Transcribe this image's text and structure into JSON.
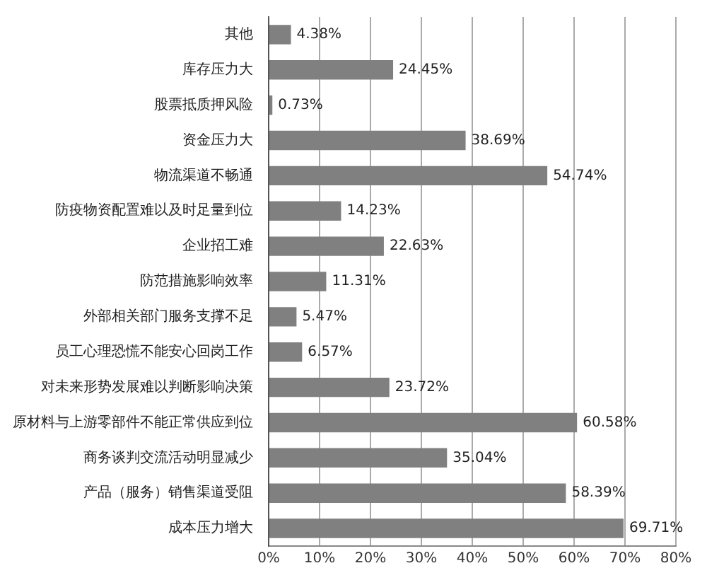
{
  "chart_data": {
    "type": "bar",
    "orientation": "horizontal",
    "categories": [
      "其他",
      "库存压力大",
      "股票抵质押风险",
      "资金压力大",
      "物流渠道不畅通",
      "防疫物资配置难以及时足量到位",
      "企业招工难",
      "防范措施影响效率",
      "外部相关部门服务支撑不足",
      "员工心理恐慌不能安心回岗工作",
      "对未来形势发展难以判断影响决策",
      "原材料与上游零部件不能正常供应到位",
      "商务谈判交流活动明显减少",
      "产品（服务）销售渠道受阻",
      "成本压力增大"
    ],
    "values": [
      4.38,
      24.45,
      0.73,
      38.69,
      54.74,
      14.23,
      22.63,
      11.31,
      5.47,
      6.57,
      23.72,
      60.58,
      35.04,
      58.39,
      69.71
    ],
    "value_labels": [
      "4.38%",
      "24.45%",
      "0.73%",
      "38.69%",
      "54.74%",
      "14.23%",
      "22.63%",
      "11.31%",
      "5.47%",
      "6.57%",
      "23.72%",
      "60.58%",
      "35.04%",
      "58.39%",
      "69.71%"
    ],
    "color": "#808080",
    "xlim": [
      0,
      80
    ],
    "xticks": [
      {
        "value": 0,
        "label": "0%"
      },
      {
        "value": 10,
        "label": "10%"
      },
      {
        "value": 20,
        "label": "20%"
      },
      {
        "value": 30,
        "label": "30%"
      },
      {
        "value": 40,
        "label": "40%"
      },
      {
        "value": 50,
        "label": "50%"
      },
      {
        "value": 60,
        "label": "60%"
      },
      {
        "value": 70,
        "label": "70%"
      },
      {
        "value": 80,
        "label": "80%"
      }
    ],
    "grid": "x",
    "legend": false
  }
}
